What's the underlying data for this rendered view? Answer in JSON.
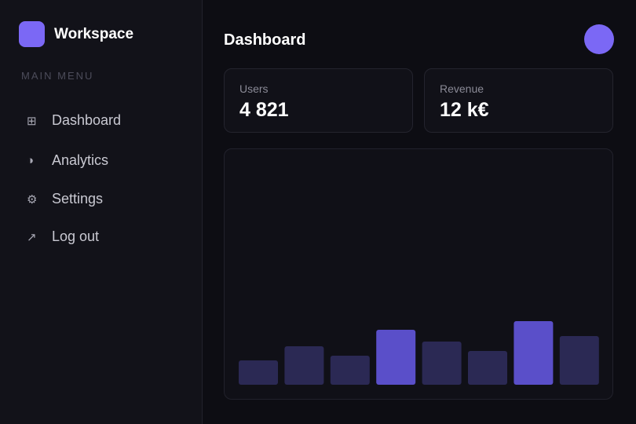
{
  "sidebar": {
    "brand": "Workspace",
    "section_label": "MAIN MENU",
    "menu": [
      "Dashboard",
      "Analytics",
      "Settings",
      "Log out"
    ]
  },
  "main": {
    "title": "Dashboard",
    "stats": [
      {
        "label": "Users",
        "value": "4 821"
      },
      {
        "label": "Revenue",
        "value": "12 k€"
      }
    ],
    "chart": {
      "type": "bar",
      "values": [
        31,
        49,
        37,
        70,
        55,
        43,
        81,
        62
      ],
      "colors": [
        "#2b2954",
        "#2b2954",
        "#2b2954",
        "#5a4fc9",
        "#2b2954",
        "#2b2954",
        "#5a4fc9",
        "#2b2954"
      ]
    }
  }
}
